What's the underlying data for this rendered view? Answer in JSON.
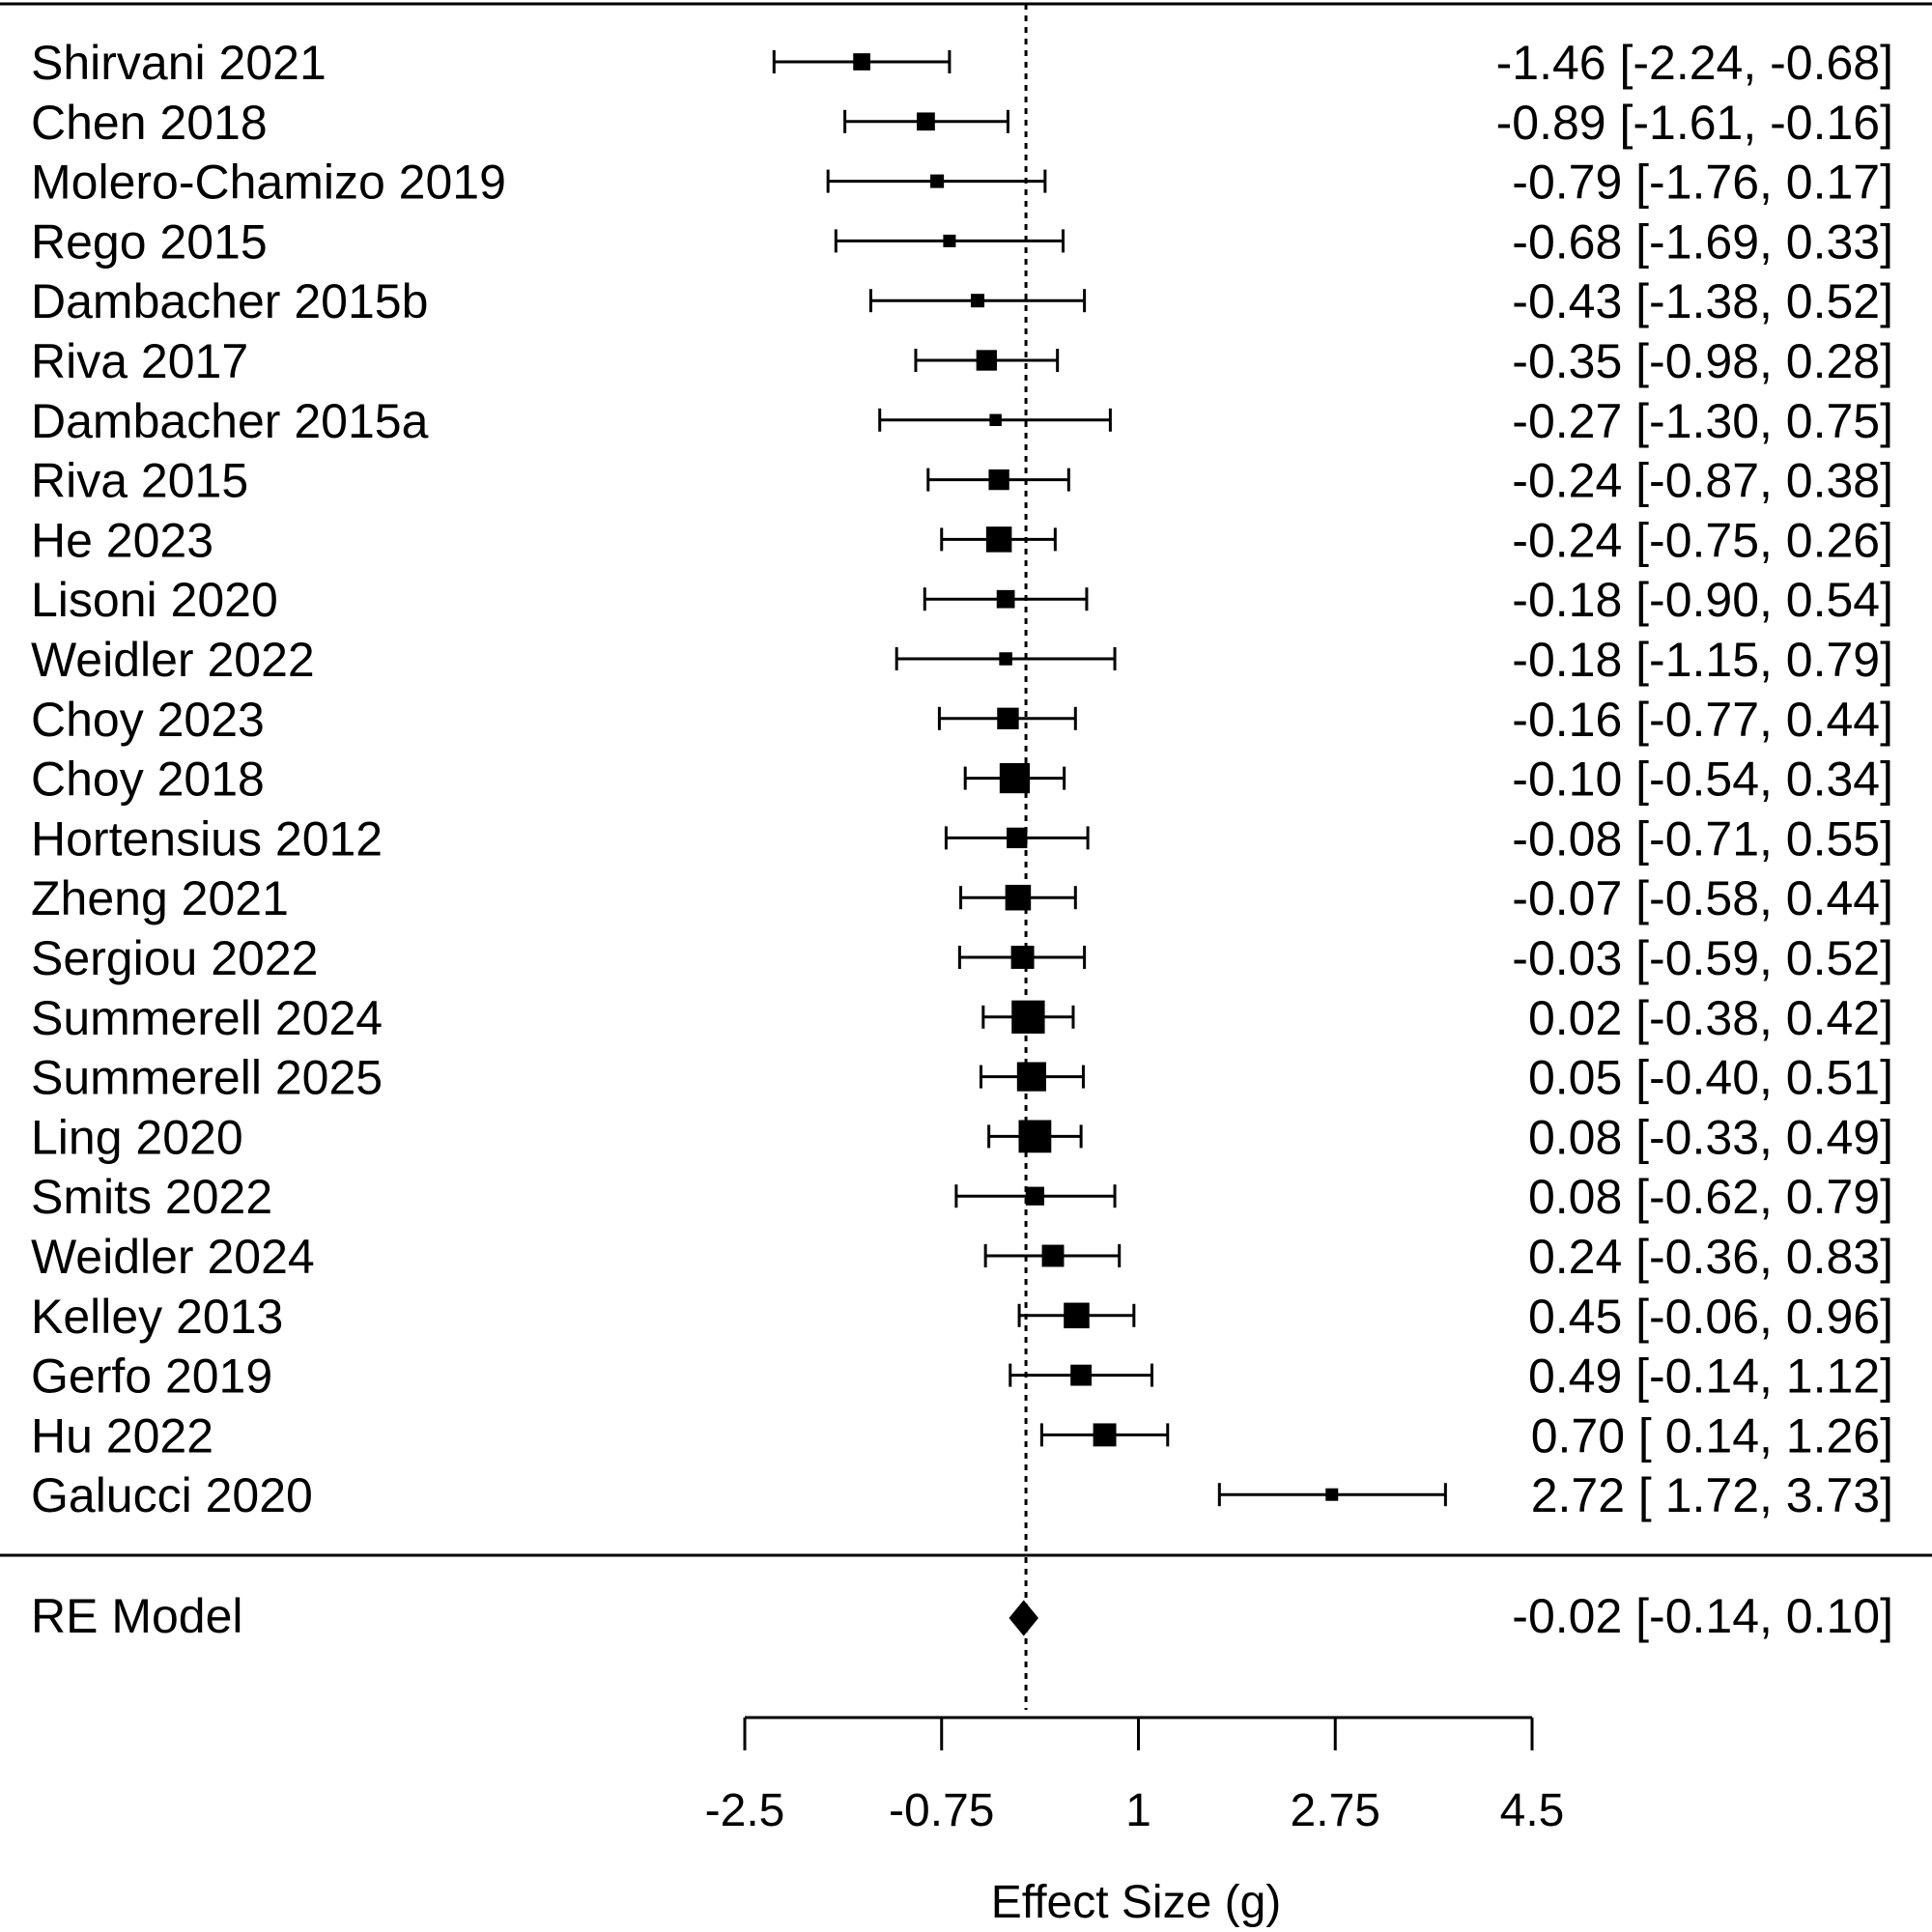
{
  "chart_data": {
    "type": "forest",
    "title": "",
    "xlabel": "Effect Size (g)",
    "ylabel": "",
    "xlim": [
      -2.5,
      4.5
    ],
    "xticks": [
      "-2.5",
      "-0.75",
      "1",
      "2.75",
      "4.5"
    ],
    "reference_line": 0,
    "studies": [
      {
        "study": "Shirvani 2021",
        "estimate": -1.46,
        "lower": -2.24,
        "upper": -0.68,
        "ci_text": "-1.46 [-2.24, -0.68]",
        "weight": 3.4
      },
      {
        "study": "Chen 2018",
        "estimate": -0.89,
        "lower": -1.61,
        "upper": -0.16,
        "ci_text": "-0.89 [-1.61, -0.16]",
        "weight": 3.6
      },
      {
        "study": "Molero-Chamizo 2019",
        "estimate": -0.79,
        "lower": -1.76,
        "upper": 0.17,
        "ci_text": "-0.79 [-1.76,  0.17]",
        "weight": 2.7
      },
      {
        "study": "Rego 2015",
        "estimate": -0.68,
        "lower": -1.69,
        "upper": 0.33,
        "ci_text": "-0.68 [-1.69,  0.33]",
        "weight": 2.5
      },
      {
        "study": "Dambacher 2015b",
        "estimate": -0.43,
        "lower": -1.38,
        "upper": 0.52,
        "ci_text": "-0.43 [-1.38,  0.52]",
        "weight": 2.7
      },
      {
        "study": "Riva 2017",
        "estimate": -0.35,
        "lower": -0.98,
        "upper": 0.28,
        "ci_text": "-0.35 [-0.98,  0.28]",
        "weight": 4.1
      },
      {
        "study": "Dambacher 2015a",
        "estimate": -0.27,
        "lower": -1.3,
        "upper": 0.75,
        "ci_text": "-0.27 [-1.30,  0.75]",
        "weight": 2.4
      },
      {
        "study": "Riva 2015",
        "estimate": -0.24,
        "lower": -0.87,
        "upper": 0.38,
        "ci_text": "-0.24 [-0.87,  0.38]",
        "weight": 4.1
      },
      {
        "study": "He 2023",
        "estimate": -0.24,
        "lower": -0.75,
        "upper": 0.26,
        "ci_text": "-0.24 [-0.75,  0.26]",
        "weight": 5.1
      },
      {
        "study": "Lisoni 2020",
        "estimate": -0.18,
        "lower": -0.9,
        "upper": 0.54,
        "ci_text": "-0.18 [-0.90,  0.54]",
        "weight": 3.6
      },
      {
        "study": "Weidler 2022",
        "estimate": -0.18,
        "lower": -1.15,
        "upper": 0.79,
        "ci_text": "-0.18 [-1.15,  0.79]",
        "weight": 2.6
      },
      {
        "study": "Choy 2023",
        "estimate": -0.16,
        "lower": -0.77,
        "upper": 0.44,
        "ci_text": "-0.16 [-0.77,  0.44]",
        "weight": 4.3
      },
      {
        "study": "Choy 2018",
        "estimate": -0.1,
        "lower": -0.54,
        "upper": 0.34,
        "ci_text": "-0.10 [-0.54,  0.34]",
        "weight": 6.0
      },
      {
        "study": "Hortensius 2012",
        "estimate": -0.08,
        "lower": -0.71,
        "upper": 0.55,
        "ci_text": "-0.08 [-0.71,  0.55]",
        "weight": 4.1
      },
      {
        "study": "Zheng 2021",
        "estimate": -0.07,
        "lower": -0.58,
        "upper": 0.44,
        "ci_text": "-0.07 [-0.58,  0.44]",
        "weight": 5.1
      },
      {
        "study": "Sergiou 2022",
        "estimate": -0.03,
        "lower": -0.59,
        "upper": 0.52,
        "ci_text": "-0.03 [-0.59,  0.52]",
        "weight": 4.6
      },
      {
        "study": "Summerell 2024",
        "estimate": 0.02,
        "lower": -0.38,
        "upper": 0.42,
        "ci_text": "0.02 [-0.38,  0.42]",
        "weight": 6.6
      },
      {
        "study": "Summerell 2025",
        "estimate": 0.05,
        "lower": -0.4,
        "upper": 0.51,
        "ci_text": "0.05 [-0.40,  0.51]",
        "weight": 5.8
      },
      {
        "study": "Ling 2020",
        "estimate": 0.08,
        "lower": -0.33,
        "upper": 0.49,
        "ci_text": "0.08 [-0.33,  0.49]",
        "weight": 6.5
      },
      {
        "study": "Smits 2022",
        "estimate": 0.08,
        "lower": -0.62,
        "upper": 0.79,
        "ci_text": "0.08 [-0.62,  0.79]",
        "weight": 3.7
      },
      {
        "study": "Weidler 2024",
        "estimate": 0.24,
        "lower": -0.36,
        "upper": 0.83,
        "ci_text": "0.24 [-0.36,  0.83]",
        "weight": 4.4
      },
      {
        "study": "Kelley 2013",
        "estimate": 0.45,
        "lower": -0.06,
        "upper": 0.96,
        "ci_text": "0.45 [-0.06,  0.96]",
        "weight": 5.1
      },
      {
        "study": "Gerfo 2019",
        "estimate": 0.49,
        "lower": -0.14,
        "upper": 1.12,
        "ci_text": "0.49 [-0.14,  1.12]",
        "weight": 4.2
      },
      {
        "study": "Hu 2022",
        "estimate": 0.7,
        "lower": 0.14,
        "upper": 1.26,
        "ci_text": "0.70 [ 0.14,  1.26]",
        "weight": 4.6
      },
      {
        "study": "Galucci  2020",
        "estimate": 2.72,
        "lower": 1.72,
        "upper": 3.73,
        "ci_text": "2.72 [ 1.72,  3.73]",
        "weight": 2.5
      }
    ],
    "summary": {
      "label": "RE Model",
      "estimate": -0.02,
      "lower": -0.14,
      "upper": 0.1,
      "ci_text": "-0.02 [-0.14,  0.10]"
    }
  }
}
